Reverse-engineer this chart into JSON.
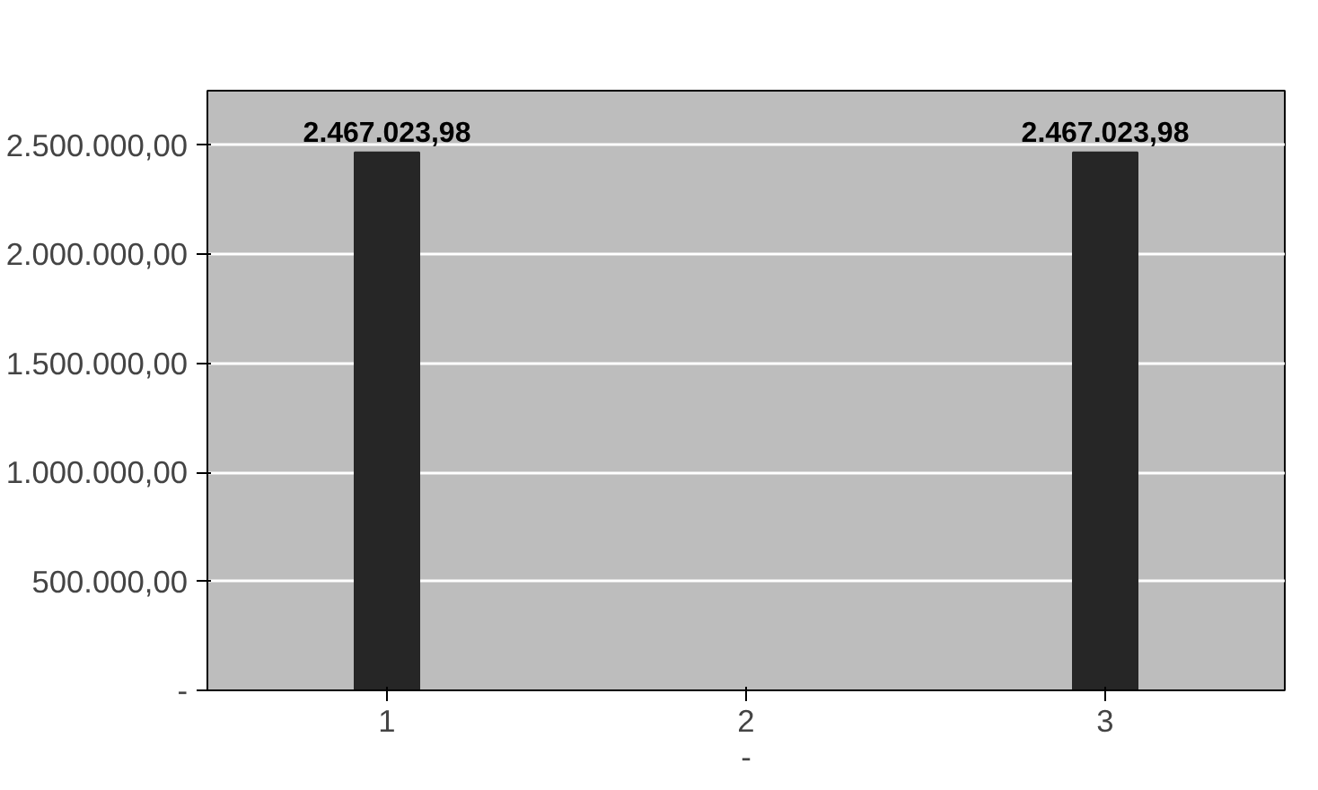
{
  "chart_data": {
    "type": "bar",
    "xlabel": "-",
    "categories": [
      "1",
      "2",
      "3"
    ],
    "values": [
      2467023.98,
      0,
      2467023.98
    ],
    "value_labels": [
      "2.467.023,98",
      null,
      "2.467.023,98"
    ],
    "color": "#262626",
    "ylim": [
      0,
      2750000
    ],
    "yticks": [
      {
        "value": 0,
        "label": "-"
      },
      {
        "value": 500000,
        "label": "500.000,00"
      },
      {
        "value": 1000000,
        "label": "1.000.000,00"
      },
      {
        "value": 1500000,
        "label": "1.500.000,00"
      },
      {
        "value": 2000000,
        "label": "2.000.000,00"
      },
      {
        "value": 2500000,
        "label": "2.500.000,00"
      }
    ],
    "grid": "y"
  }
}
